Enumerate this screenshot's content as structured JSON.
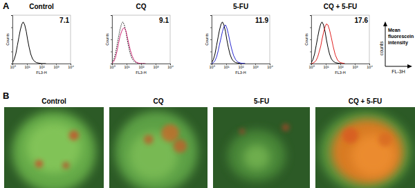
{
  "figure": {
    "panel_labels": [
      "A",
      "B"
    ],
    "key": {
      "y_label": "counts",
      "x_label": "FL-3H",
      "text": [
        "Mean",
        "fluorescein",
        "intensity"
      ]
    },
    "images": {
      "titles": [
        "Control",
        "CQ",
        "5-FU",
        "CQ + 5-FU"
      ]
    }
  },
  "chart_data": [
    {
      "type": "line",
      "title": "Control",
      "annotation": "7.1",
      "xlabel": "FL3-H",
      "ylabel": "Counts",
      "log": "x",
      "x": [
        1,
        1.3,
        1.7,
        2.2,
        2.8,
        3.5,
        4.5,
        5.5,
        7,
        9,
        11,
        14,
        18,
        24,
        32,
        45,
        65,
        100,
        200
      ],
      "xlim": [
        1,
        10000
      ],
      "xticks": [
        {
          "value": 1,
          "label": "10⁰"
        },
        {
          "value": 10,
          "label": "10¹"
        },
        {
          "value": 100,
          "label": "10²"
        },
        {
          "value": 1000,
          "label": "10³"
        },
        {
          "value": 10000,
          "label": "10⁴"
        }
      ],
      "ylim": [
        0,
        100
      ],
      "yticks": [
        0,
        25,
        50,
        75,
        100
      ],
      "tick_labels": "x",
      "grid": false,
      "series": [
        {
          "color": "#000000",
          "line_style": "solid",
          "values": [
            2,
            8,
            20,
            38,
            55,
            70,
            82,
            86,
            80,
            66,
            50,
            34,
            20,
            10,
            5,
            2,
            1,
            0,
            0
          ]
        }
      ]
    },
    {
      "type": "line",
      "title": "CQ",
      "annotation": "9.1",
      "xlabel": "FL3-H",
      "ylabel": "Counts",
      "log": "x",
      "x": [
        1,
        1.3,
        1.7,
        2.2,
        2.8,
        3.5,
        4.5,
        5.5,
        7,
        9,
        11,
        14,
        18,
        24,
        32,
        45,
        65,
        100,
        200
      ],
      "xlim": [
        1,
        10000
      ],
      "xticks": [
        {
          "value": 1,
          "label": "10⁰"
        },
        {
          "value": 10,
          "label": "10¹"
        },
        {
          "value": 100,
          "label": "10²"
        },
        {
          "value": 1000,
          "label": "10³"
        },
        {
          "value": 10000,
          "label": "10⁴"
        }
      ],
      "ylim": [
        0,
        100
      ],
      "yticks": [
        0,
        25,
        50,
        75,
        100
      ],
      "tick_labels": "x",
      "grid": false,
      "series": [
        {
          "color": "#000000",
          "line_style": "dotted",
          "values": [
            2,
            8,
            20,
            38,
            55,
            70,
            82,
            86,
            80,
            66,
            50,
            34,
            20,
            10,
            5,
            2,
            1,
            0,
            0
          ]
        },
        {
          "color": "#d0307a",
          "line_style": "solid",
          "values": [
            1,
            4,
            12,
            26,
            42,
            56,
            66,
            72,
            74,
            68,
            56,
            42,
            28,
            16,
            8,
            3,
            1,
            0,
            0
          ]
        }
      ]
    },
    {
      "type": "line",
      "title": "5-FU",
      "annotation": "11.9",
      "xlabel": "FL3-H",
      "ylabel": "Counts",
      "log": "x",
      "x": [
        1,
        1.3,
        1.7,
        2.2,
        2.8,
        3.5,
        4.5,
        5.5,
        7,
        9,
        11,
        14,
        18,
        24,
        32,
        45,
        65,
        100,
        200
      ],
      "xlim": [
        1,
        10000
      ],
      "xticks": [
        {
          "value": 1,
          "label": "10⁰"
        },
        {
          "value": 10,
          "label": "10¹"
        },
        {
          "value": 100,
          "label": "10²"
        },
        {
          "value": 1000,
          "label": "10³"
        },
        {
          "value": 10000,
          "label": "10⁴"
        }
      ],
      "ylim": [
        0,
        100
      ],
      "yticks": [
        0,
        25,
        50,
        75,
        100
      ],
      "tick_labels": "x",
      "grid": false,
      "series": [
        {
          "color": "#000000",
          "line_style": "solid",
          "values": [
            2,
            8,
            20,
            38,
            55,
            70,
            82,
            86,
            80,
            66,
            50,
            34,
            20,
            10,
            5,
            2,
            1,
            0,
            0
          ]
        },
        {
          "color": "#2a2ad0",
          "line_style": "solid",
          "values": [
            0,
            2,
            6,
            14,
            26,
            40,
            54,
            66,
            76,
            80,
            74,
            62,
            46,
            30,
            17,
            8,
            3,
            1,
            0
          ]
        }
      ]
    },
    {
      "type": "line",
      "title": "CQ + 5-FU",
      "annotation": "17.6",
      "xlabel": "FL3-H",
      "ylabel": "Counts",
      "log": "x",
      "x": [
        1,
        1.3,
        1.7,
        2.2,
        2.8,
        3.5,
        4.5,
        5.5,
        7,
        9,
        11,
        14,
        18,
        24,
        32,
        45,
        65,
        100,
        200
      ],
      "xlim": [
        1,
        10000
      ],
      "xticks": [
        {
          "value": 1,
          "label": "10⁰"
        },
        {
          "value": 10,
          "label": "10¹"
        },
        {
          "value": 100,
          "label": "10²"
        },
        {
          "value": 1000,
          "label": "10³"
        },
        {
          "value": 10000,
          "label": "10⁴"
        }
      ],
      "ylim": [
        0,
        100
      ],
      "yticks": [
        0,
        25,
        50,
        75,
        100
      ],
      "tick_labels": "x",
      "grid": false,
      "series": [
        {
          "color": "#000000",
          "line_style": "solid",
          "values": [
            2,
            8,
            20,
            38,
            55,
            70,
            82,
            86,
            80,
            66,
            50,
            34,
            20,
            10,
            5,
            2,
            1,
            0,
            0
          ]
        },
        {
          "color": "#e02020",
          "line_style": "solid",
          "values": [
            0,
            1,
            3,
            7,
            14,
            24,
            36,
            50,
            64,
            76,
            82,
            80,
            70,
            54,
            36,
            18,
            7,
            2,
            0
          ]
        }
      ]
    }
  ]
}
